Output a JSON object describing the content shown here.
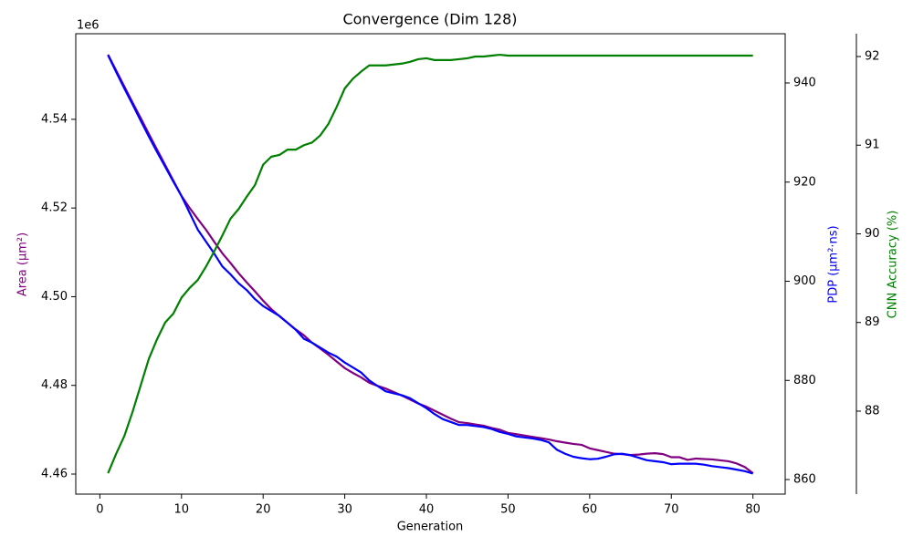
{
  "chart_data": {
    "type": "line",
    "title": "Convergence (Dim 128)",
    "xlabel": "Generation",
    "ylabel": "Area (μm²)",
    "y2label": "PDP (μm²·ns)",
    "y3label": "CNN Accuracy (%)",
    "y_offset_label": "1e6",
    "x": [
      1,
      2,
      3,
      4,
      5,
      6,
      7,
      8,
      9,
      10,
      11,
      12,
      13,
      14,
      15,
      16,
      17,
      18,
      19,
      20,
      21,
      22,
      23,
      24,
      25,
      26,
      27,
      28,
      29,
      30,
      31,
      32,
      33,
      34,
      35,
      36,
      37,
      38,
      39,
      40,
      41,
      42,
      43,
      44,
      45,
      46,
      47,
      48,
      49,
      50,
      51,
      52,
      53,
      54,
      55,
      56,
      57,
      58,
      59,
      60,
      61,
      62,
      63,
      64,
      65,
      66,
      67,
      68,
      69,
      70,
      71,
      72,
      73,
      74,
      75,
      76,
      77,
      78,
      79,
      80
    ],
    "xlim": [
      -2.95,
      83.95
    ],
    "xticks": [
      0,
      10,
      20,
      30,
      40,
      50,
      60,
      70,
      80
    ],
    "ylim": [
      4455480,
      4559300
    ],
    "yticks": [
      {
        "value": 4460000,
        "label": "4.46"
      },
      {
        "value": 4480000,
        "label": "4.48"
      },
      {
        "value": 4500000,
        "label": "4.50"
      },
      {
        "value": 4520000,
        "label": "4.52"
      },
      {
        "value": 4540000,
        "label": "4.54"
      }
    ],
    "y2lim": [
      857.06,
      949.93
    ],
    "y2ticks": [
      860,
      880,
      900,
      920,
      940
    ],
    "y3lim": [
      87.064,
      92.257
    ],
    "y3ticks": [
      88,
      89,
      90,
      91,
      92
    ],
    "series": [
      {
        "name": "Area",
        "color": "#800080",
        "axis": "y",
        "values": [
          4554600,
          4551000,
          4547400,
          4543800,
          4540300,
          4536700,
          4533200,
          4529700,
          4526200,
          4522700,
          4520000,
          4517500,
          4515100,
          4512400,
          4509800,
          4507600,
          4505300,
          4503200,
          4501200,
          4499100,
          4497200,
          4495600,
          4494100,
          4492600,
          4491300,
          4489600,
          4488300,
          4486900,
          4485400,
          4483900,
          4482800,
          4481800,
          4480600,
          4479900,
          4479300,
          4478500,
          4477700,
          4476800,
          4475900,
          4475200,
          4474300,
          4473400,
          4472500,
          4471700,
          4471500,
          4471200,
          4470900,
          4470400,
          4470000,
          4469300,
          4469000,
          4468700,
          4468400,
          4468100,
          4467800,
          4467400,
          4467100,
          4466800,
          4466600,
          4465800,
          4465400,
          4465000,
          4464600,
          4464500,
          4464300,
          4464400,
          4464600,
          4464700,
          4464500,
          4463800,
          4463800,
          4463200,
          4463500,
          4463400,
          4463300,
          4463100,
          4462900,
          4462400,
          4461600,
          4460200
        ]
      },
      {
        "name": "PDP",
        "color": "#0000ff",
        "axis": "y2",
        "values": [
          945.6,
          942.2,
          938.9,
          935.7,
          932.4,
          929.2,
          926.1,
          923.1,
          920.1,
          917.2,
          913.8,
          910.4,
          908.0,
          905.6,
          903.0,
          901.4,
          899.6,
          898.2,
          896.4,
          895.0,
          894.0,
          893.0,
          891.6,
          890.2,
          888.4,
          887.6,
          886.6,
          885.6,
          884.8,
          883.6,
          882.6,
          881.6,
          880.0,
          878.9,
          877.8,
          877.4,
          877.0,
          876.4,
          875.4,
          874.4,
          873.2,
          872.2,
          871.6,
          871.0,
          871.0,
          870.8,
          870.6,
          870.2,
          869.6,
          869.2,
          868.7,
          868.5,
          868.3,
          868.0,
          867.5,
          866.0,
          865.2,
          864.6,
          864.3,
          864.1,
          864.2,
          864.6,
          865.1,
          865.2,
          864.9,
          864.4,
          863.9,
          863.7,
          863.5,
          863.1,
          863.2,
          863.2,
          863.2,
          863.0,
          862.7,
          862.5,
          862.3,
          862.0,
          861.7,
          861.2
        ]
      },
      {
        "name": "CNN Accuracy",
        "color": "#008000",
        "axis": "y3",
        "values": [
          87.3,
          87.52,
          87.72,
          87.99,
          88.29,
          88.59,
          88.81,
          89.0,
          89.1,
          89.28,
          89.39,
          89.48,
          89.63,
          89.8,
          89.98,
          90.17,
          90.28,
          90.42,
          90.55,
          90.78,
          90.87,
          90.89,
          90.95,
          90.95,
          91.0,
          91.03,
          91.11,
          91.24,
          91.43,
          91.64,
          91.75,
          91.83,
          91.9,
          91.9,
          91.9,
          91.91,
          91.92,
          91.94,
          91.97,
          91.98,
          91.96,
          91.96,
          91.96,
          91.97,
          91.98,
          92.0,
          92.0,
          92.01,
          92.02,
          92.01,
          92.01,
          92.01,
          92.01,
          92.01,
          92.01,
          92.01,
          92.01,
          92.01,
          92.01,
          92.01,
          92.01,
          92.01,
          92.01,
          92.01,
          92.01,
          92.01,
          92.01,
          92.01,
          92.01,
          92.01,
          92.01,
          92.01,
          92.01,
          92.01,
          92.01,
          92.01,
          92.01,
          92.01,
          92.01,
          92.01
        ]
      }
    ]
  }
}
